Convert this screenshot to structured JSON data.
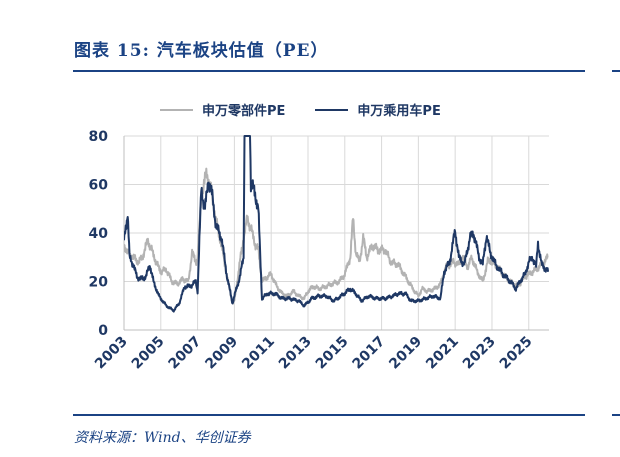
{
  "title": "图表 15:  汽车板块估值（PE）",
  "source": "资料来源：Wind、华创证券",
  "chart_data": {
    "type": "line",
    "title": "汽车板块估值（PE）",
    "xlabel": "",
    "ylabel": "",
    "xlim": [
      2003.0,
      2026.1
    ],
    "ylim": [
      0,
      80
    ],
    "yticks": [
      "0",
      "20",
      "40",
      "60",
      "80"
    ],
    "xticks": [
      "2003",
      "2005",
      "2007",
      "2009",
      "2011",
      "2013",
      "2015",
      "2017",
      "2019",
      "2021",
      "2023",
      "2025"
    ],
    "grid": true,
    "legend_position": "top",
    "series": [
      {
        "name": "申万零部件PE",
        "color": "#b3b3b3",
        "x": [
          2003.0,
          2003.2,
          2003.5,
          2003.8,
          2004.0,
          2004.3,
          2004.5,
          2004.8,
          2005.0,
          2005.3,
          2005.6,
          2005.9,
          2006.2,
          2006.5,
          2006.7,
          2006.9,
          2007.0,
          2007.2,
          2007.5,
          2007.8,
          2008.0,
          2008.3,
          2008.6,
          2008.9,
          2009.0,
          2009.3,
          2009.5,
          2009.7,
          2009.9,
          2010.1,
          2010.3,
          2010.5,
          2010.8,
          2011.0,
          2011.3,
          2011.6,
          2011.9,
          2012.2,
          2012.5,
          2012.8,
          2013.0,
          2013.3,
          2013.6,
          2014.0,
          2014.3,
          2014.7,
          2015.0,
          2015.3,
          2015.45,
          2015.6,
          2015.8,
          2016.0,
          2016.2,
          2016.5,
          2016.8,
          2017.2,
          2017.5,
          2017.9,
          2018.3,
          2018.7,
          2019.0,
          2019.2,
          2019.5,
          2019.9,
          2020.2,
          2020.5,
          2020.9,
          2021.2,
          2021.4,
          2021.7,
          2021.9,
          2022.2,
          2022.5,
          2022.8,
          2023.0,
          2023.3,
          2023.6,
          2024.0,
          2024.4,
          2024.8,
          2025.0,
          2025.4,
          2025.7,
          2026.05
        ],
        "y": [
          35,
          32,
          30,
          28,
          30,
          37,
          33,
          27,
          24,
          25,
          20,
          19,
          21,
          20,
          32,
          28,
          30,
          55,
          65,
          55,
          45,
          35,
          22,
          11,
          12,
          28,
          38,
          46,
          42,
          36,
          33,
          20,
          22,
          23,
          18,
          15,
          14,
          16,
          14,
          13,
          16,
          18,
          17,
          18,
          19,
          20,
          23,
          30,
          46,
          32,
          28,
          38,
          30,
          35,
          33,
          33,
          28,
          27,
          22,
          17,
          14,
          17,
          16,
          17,
          19,
          26,
          28,
          27,
          30,
          26,
          30,
          24,
          20,
          29,
          28,
          26,
          23,
          20,
          18,
          22,
          23,
          25,
          27,
          30
        ]
      },
      {
        "name": "申万乘用车PE",
        "color": "#1f3864",
        "x": [
          2003.0,
          2003.1,
          2003.2,
          2003.3,
          2003.5,
          2003.7,
          2003.9,
          2004.2,
          2004.4,
          2004.6,
          2004.9,
          2005.0,
          2005.3,
          2005.7,
          2006.0,
          2006.3,
          2006.6,
          2006.9,
          2007.0,
          2007.2,
          2007.4,
          2007.6,
          2007.8,
          2008.0,
          2008.3,
          2008.6,
          2008.9,
          2009.0,
          2009.3,
          2009.5,
          2009.55,
          2009.85,
          2009.9,
          2010.1,
          2010.3,
          2010.5,
          2010.8,
          2011.2,
          2011.6,
          2012.0,
          2012.5,
          2012.8,
          2013.2,
          2013.6,
          2014.0,
          2014.4,
          2014.8,
          2015.3,
          2015.6,
          2015.9,
          2016.3,
          2016.7,
          2017.2,
          2017.6,
          2017.9,
          2018.3,
          2018.6,
          2019.0,
          2019.4,
          2019.8,
          2020.2,
          2020.4,
          2020.7,
          2021.0,
          2021.2,
          2021.5,
          2021.8,
          2022.0,
          2022.3,
          2022.5,
          2022.7,
          2022.9,
          2023.2,
          2023.6,
          2024.0,
          2024.3,
          2024.6,
          2024.8,
          2025.0,
          2025.2,
          2025.4,
          2025.5,
          2025.7,
          2026.05
        ],
        "y": [
          37,
          43,
          48,
          30,
          27,
          22,
          21,
          22,
          27,
          20,
          14,
          13,
          10,
          8,
          11,
          18,
          18,
          20,
          16,
          58,
          50,
          62,
          55,
          43,
          38,
          22,
          11,
          14,
          22,
          30,
          80,
          80,
          60,
          57,
          50,
          13,
          15,
          15,
          13,
          13,
          12,
          10,
          13,
          14,
          14,
          12,
          14,
          17,
          15,
          12,
          14,
          13,
          13,
          14,
          15,
          15,
          12,
          12,
          13,
          14,
          13,
          24,
          28,
          41,
          30,
          27,
          38,
          40,
          30,
          27,
          39,
          32,
          27,
          23,
          20,
          17,
          21,
          23,
          28,
          30,
          26,
          36,
          27,
          24
        ]
      }
    ]
  }
}
